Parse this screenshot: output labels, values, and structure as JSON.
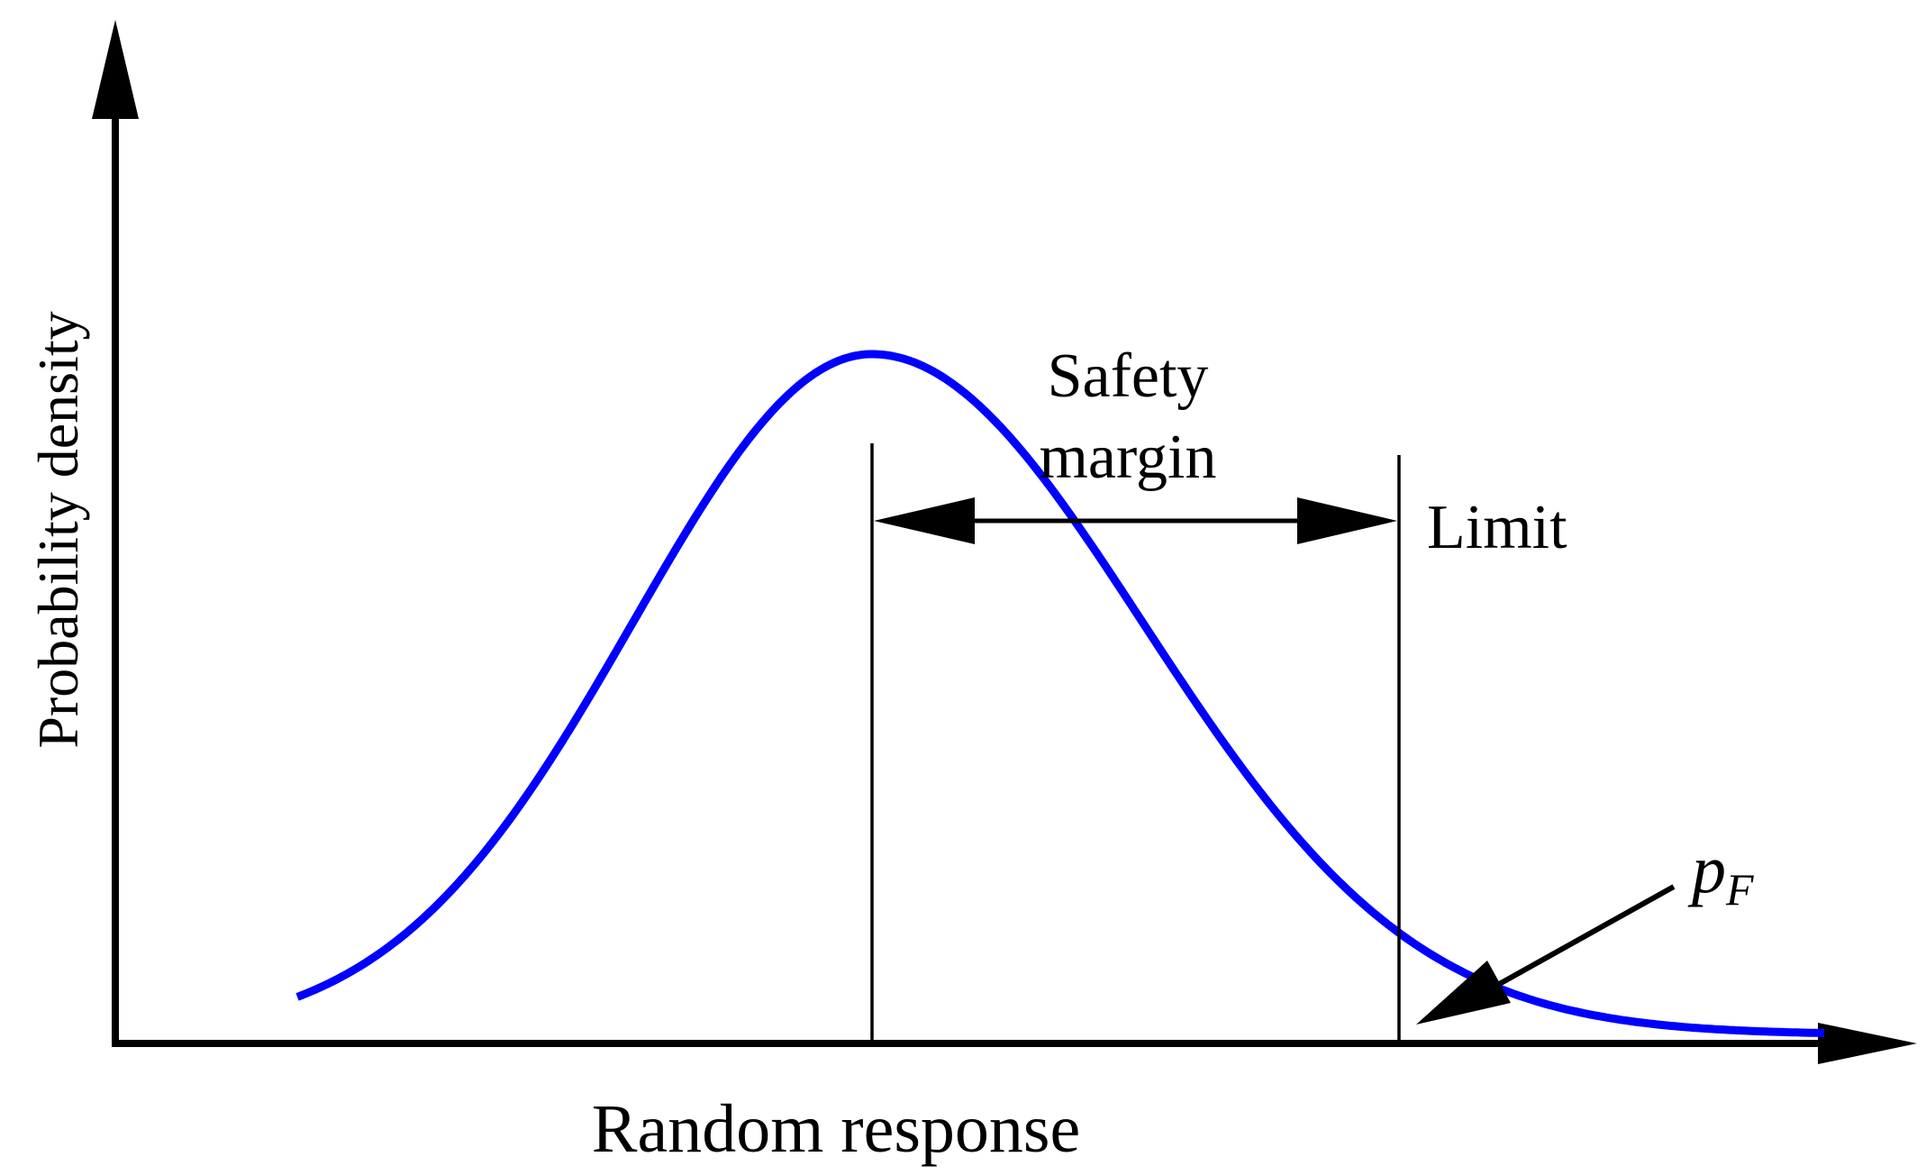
{
  "diagram": {
    "axes": {
      "x_label": "Random response",
      "y_label": "Probability density"
    },
    "annotations": {
      "safety_margin_line1": "Safety",
      "safety_margin_line2": "margin",
      "limit_label": "Limit",
      "failure_probability_symbol": "p",
      "failure_probability_subscript": "F"
    },
    "colors": {
      "curve": "#0000ff",
      "axes": "#000000",
      "text": "#000000"
    }
  }
}
